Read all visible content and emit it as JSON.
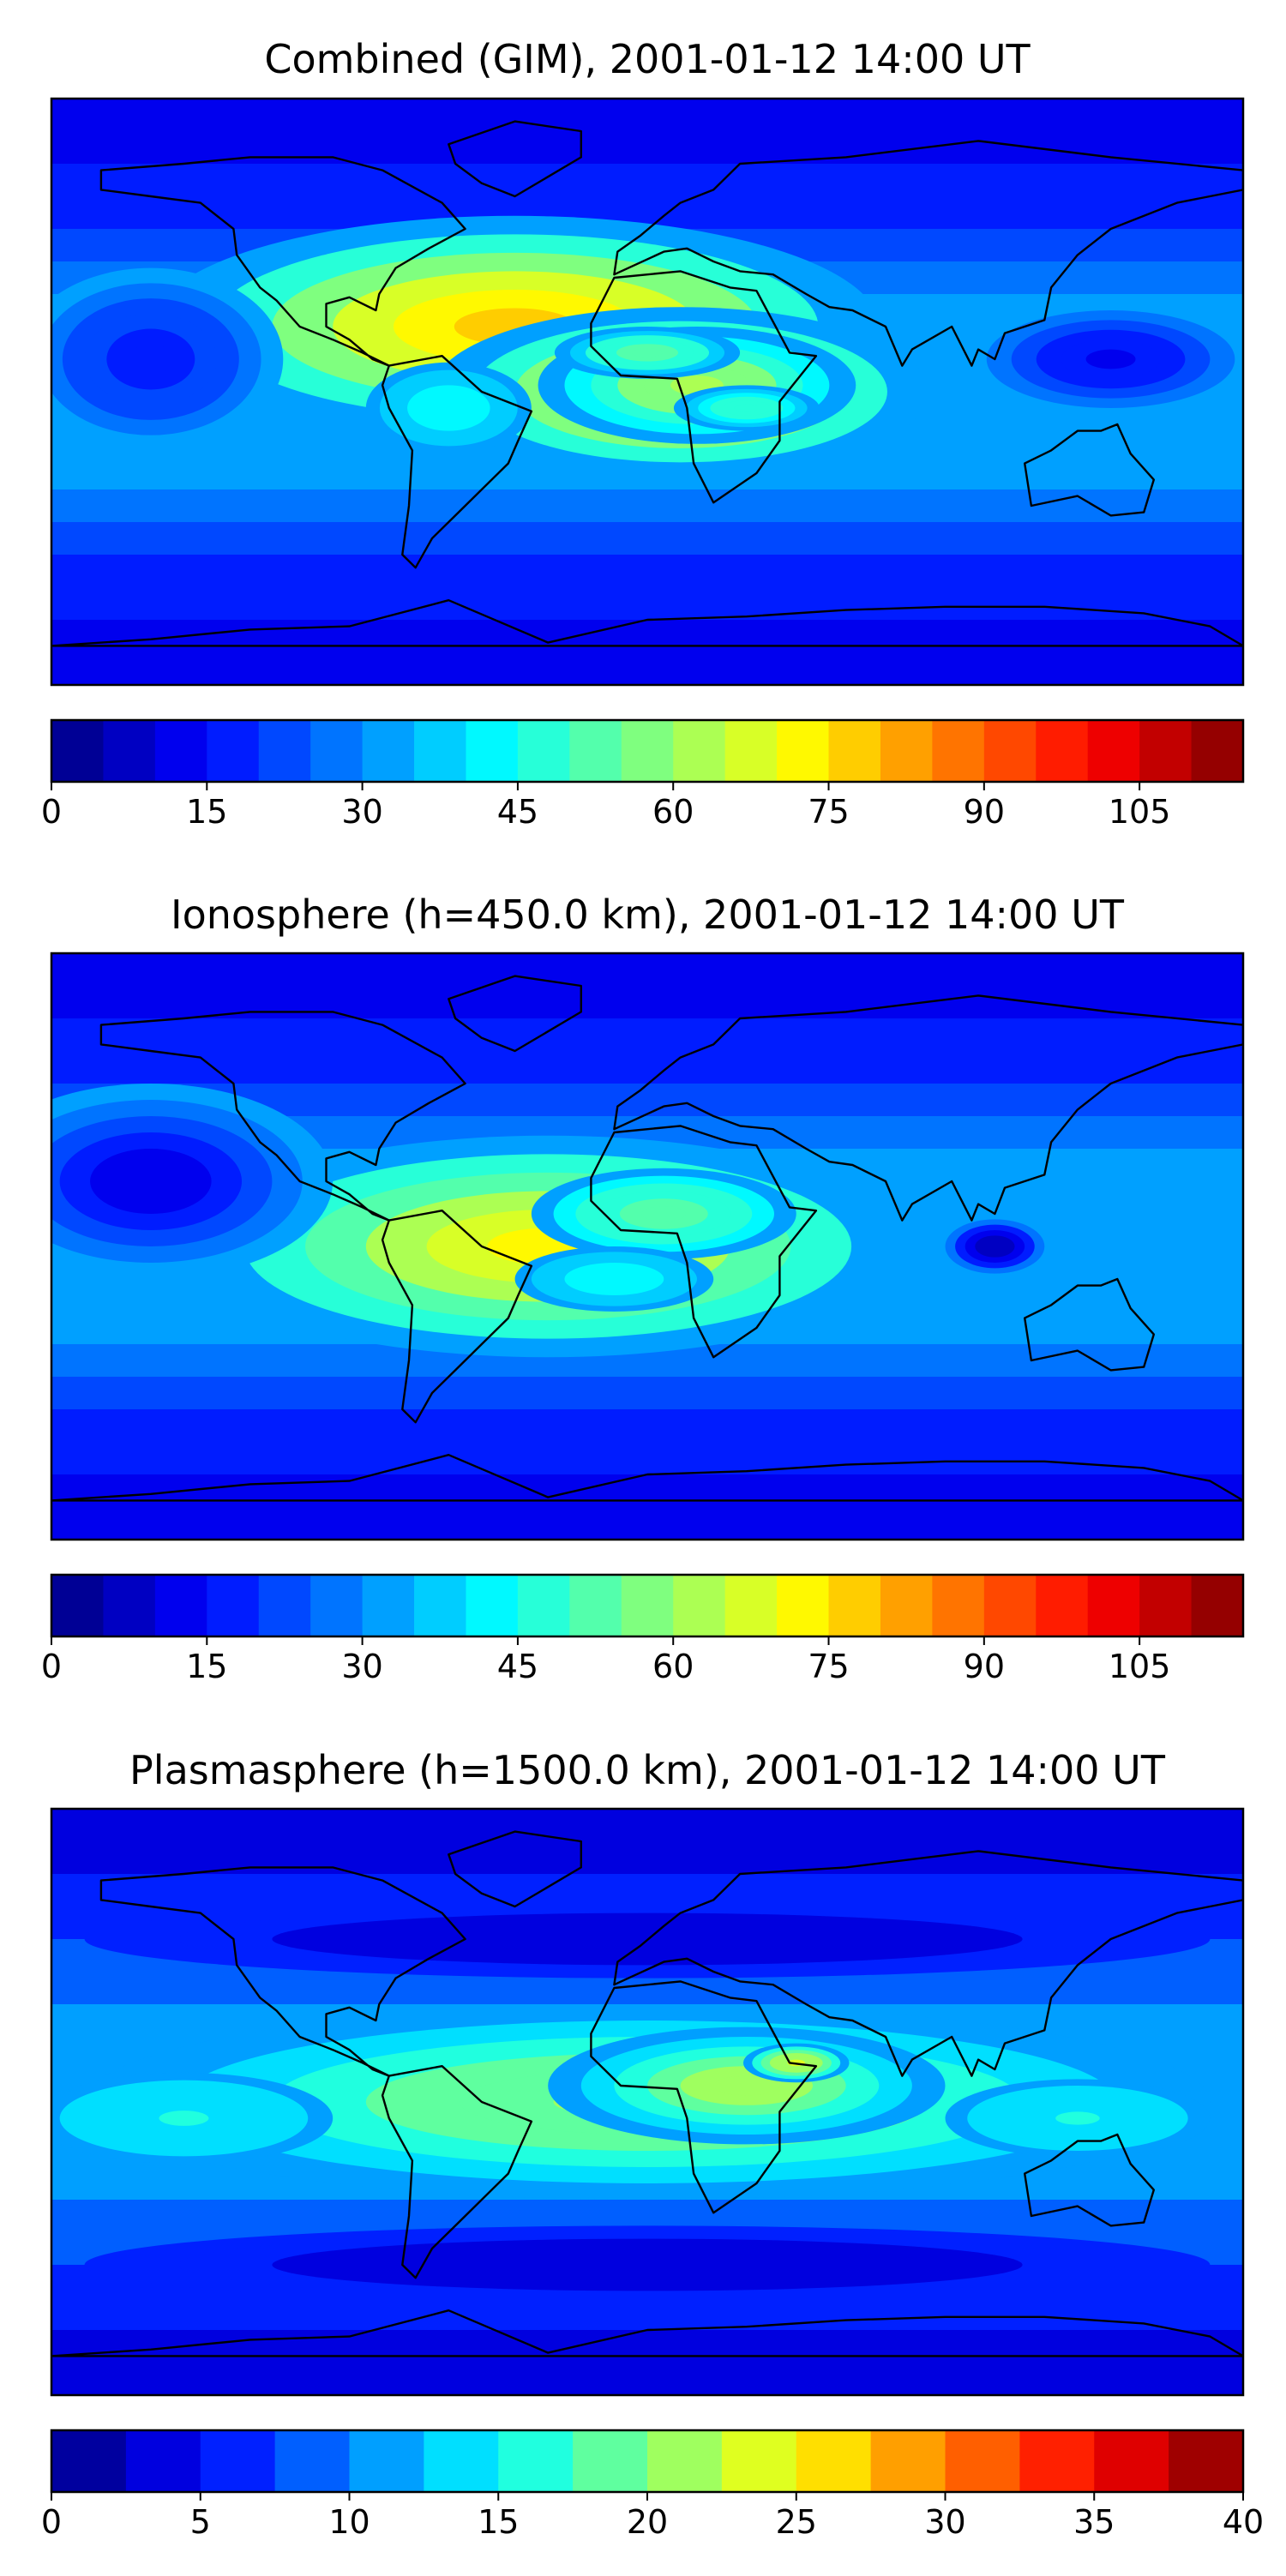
{
  "figure": {
    "panels": [
      {
        "title": "Combined (GIM), 2001-01-12 14:00 UT",
        "colorbar": {
          "min": 0,
          "max": 115,
          "n_levels": 23,
          "ticks": [
            "0",
            "15",
            "30",
            "45",
            "60",
            "75",
            "90",
            "105"
          ],
          "tick_values": [
            0,
            15,
            30,
            45,
            60,
            75,
            90,
            105
          ]
        },
        "blobs": [
          {
            "lon": -40,
            "lat": 20,
            "rx": 110,
            "ry": 34,
            "level": 0.42
          },
          {
            "lon": 10,
            "lat": 0,
            "rx": 75,
            "ry": 26,
            "level": 0.38
          },
          {
            "lon": 15,
            "lat": 2,
            "rx": 48,
            "ry": 18,
            "level": 0.24
          },
          {
            "lon": 0,
            "lat": 12,
            "rx": 28,
            "ry": 8,
            "level": 0.18
          },
          {
            "lon": 30,
            "lat": -5,
            "rx": 22,
            "ry": 7,
            "level": 0.14
          },
          {
            "lon": -60,
            "lat": -5,
            "rx": 25,
            "ry": 14,
            "level": 0.08
          },
          {
            "lon": 140,
            "lat": 10,
            "rx": 45,
            "ry": 18,
            "level": -0.18
          },
          {
            "lon": -150,
            "lat": 10,
            "rx": 40,
            "ry": 28,
            "level": -0.15
          }
        ]
      },
      {
        "title": "Ionosphere  (h=450.0 km), 2001-01-12 14:00 UT",
        "colorbar": {
          "min": 0,
          "max": 115,
          "n_levels": 23,
          "ticks": [
            "0",
            "15",
            "30",
            "45",
            "60",
            "75",
            "90",
            "105"
          ],
          "tick_values": [
            0,
            15,
            30,
            45,
            60,
            75,
            90,
            105
          ]
        },
        "blobs": [
          {
            "lon": -30,
            "lat": 0,
            "rx": 110,
            "ry": 34,
            "level": 0.32
          },
          {
            "lon": 5,
            "lat": 10,
            "rx": 40,
            "ry": 14,
            "level": 0.18
          },
          {
            "lon": -10,
            "lat": -10,
            "rx": 30,
            "ry": 10,
            "level": 0.08
          },
          {
            "lon": 105,
            "lat": 0,
            "rx": 18,
            "ry": 10,
            "level": -0.25
          },
          {
            "lon": -150,
            "lat": 20,
            "rx": 55,
            "ry": 30,
            "level": -0.18
          }
        ]
      },
      {
        "title": "Plasmasphere (h=1500.0 km), 2001-01-12 14:00 UT",
        "colorbar": {
          "min": 0,
          "max": 40,
          "n_levels": 16,
          "ticks": [
            "0",
            "5",
            "10",
            "15",
            "20",
            "25",
            "30",
            "35",
            "40"
          ],
          "tick_values": [
            0,
            5,
            10,
            15,
            20,
            25,
            30,
            35,
            40
          ]
        },
        "blobs": [
          {
            "lon": 0,
            "lat": 0,
            "rx": 170,
            "ry": 30,
            "level": 0.22
          },
          {
            "lon": 30,
            "lat": 5,
            "rx": 60,
            "ry": 18,
            "level": 0.25
          },
          {
            "lon": 45,
            "lat": 12,
            "rx": 16,
            "ry": 6,
            "level": 0.28
          },
          {
            "lon": -140,
            "lat": -5,
            "rx": 45,
            "ry": 14,
            "level": 0.08
          },
          {
            "lon": 130,
            "lat": -5,
            "rx": 40,
            "ry": 12,
            "level": 0.08
          },
          {
            "lon": 0,
            "lat": 50,
            "rx": 170,
            "ry": 12,
            "level": -0.12
          },
          {
            "lon": 0,
            "lat": -50,
            "rx": 170,
            "ry": 12,
            "level": -0.12
          }
        ]
      }
    ],
    "colors": {
      "jet_stops": [
        "#00007f",
        "#0000ff",
        "#007fff",
        "#00ffff",
        "#7fff7f",
        "#ffff00",
        "#ff7f00",
        "#ff0000",
        "#7f0000"
      ],
      "coastline": "#000000",
      "frame": "#000000"
    }
  }
}
